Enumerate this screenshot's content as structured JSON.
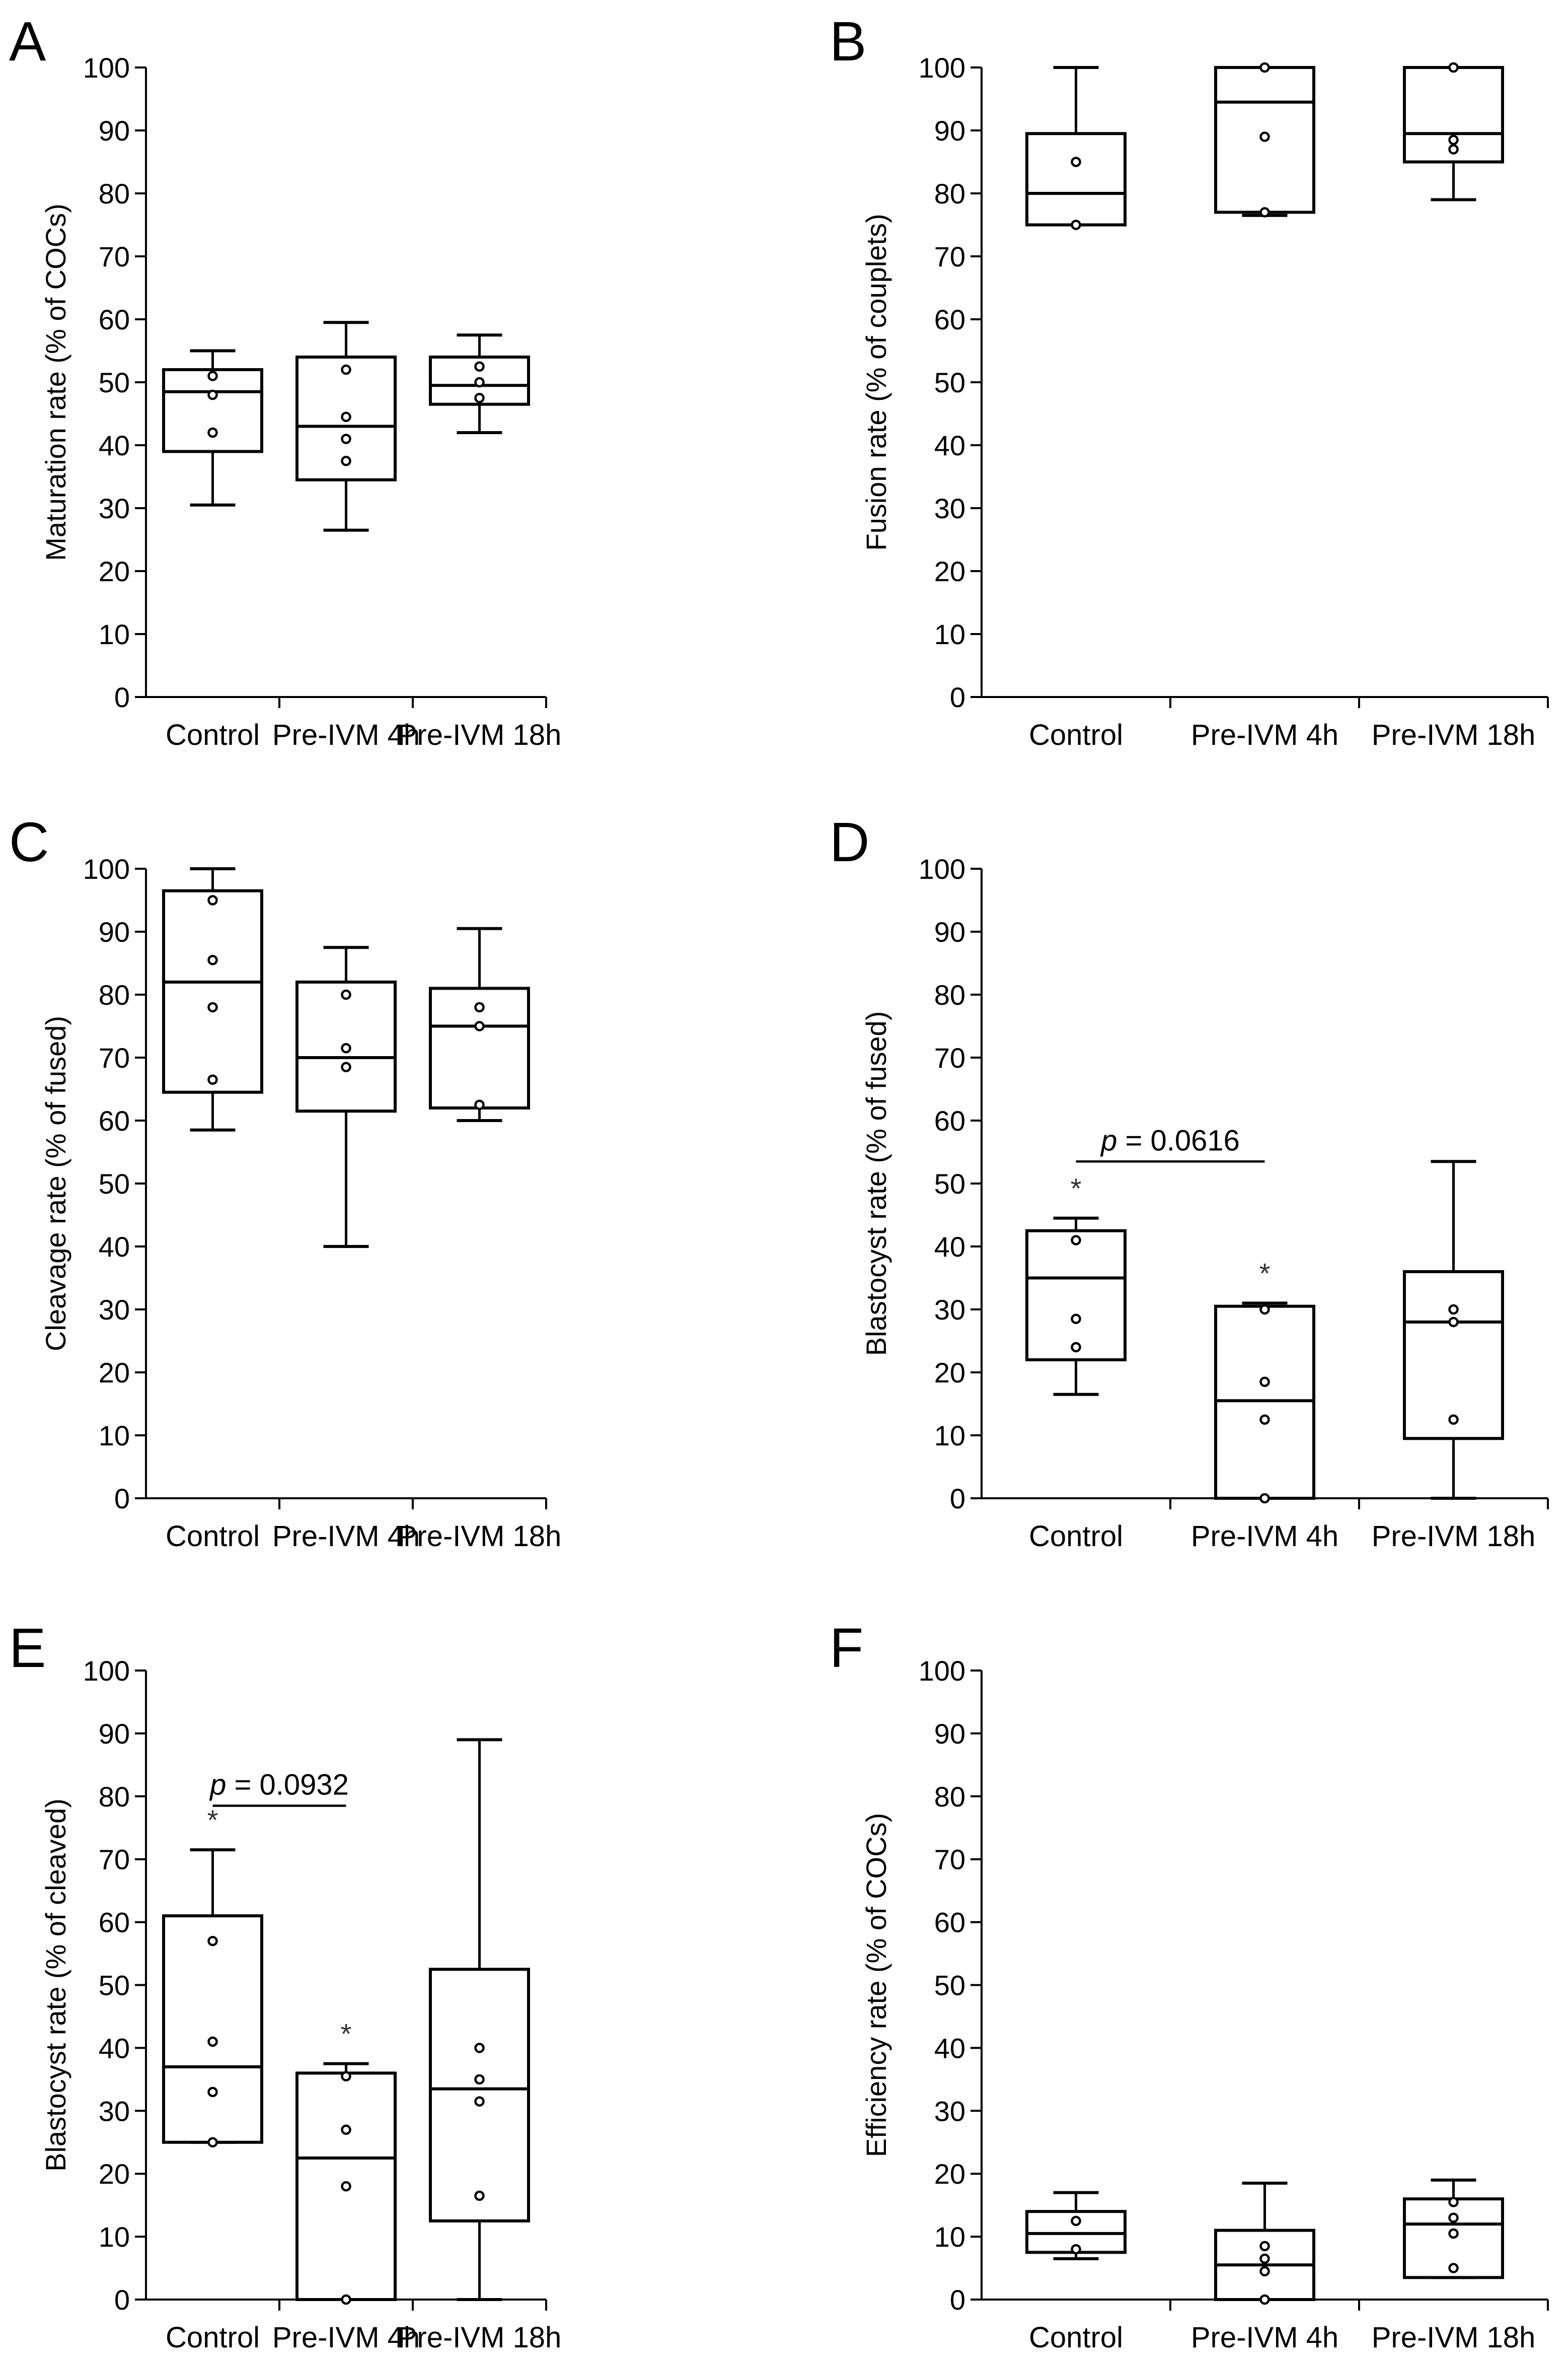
{
  "chart_data": [
    {
      "panel": "A",
      "type": "box",
      "ylabel": "Maturation rate (% of COCs)",
      "ylim": [
        0,
        100
      ],
      "yticks": [
        0,
        10,
        20,
        30,
        40,
        50,
        60,
        70,
        80,
        90,
        100
      ],
      "categories": [
        "Control",
        "Pre-IVM 4h",
        "Pre-IVM 18h"
      ],
      "boxes": [
        {
          "whisker_low": 30.5,
          "q1": 39,
          "median": 48.5,
          "q3": 52,
          "whisker_high": 55,
          "points": [
            42,
            48,
            51
          ]
        },
        {
          "whisker_low": 26.5,
          "q1": 34.5,
          "median": 43,
          "q3": 54,
          "whisker_high": 59.5,
          "points": [
            37.5,
            41,
            44.5,
            52
          ]
        },
        {
          "whisker_low": 42,
          "q1": 46.5,
          "median": 49.5,
          "q3": 54,
          "whisker_high": 57.5,
          "points": [
            47.5,
            50,
            52.5
          ]
        }
      ],
      "annotation": null
    },
    {
      "panel": "B",
      "type": "box",
      "ylabel": "Fusion rate (% of couplets)",
      "ylim": [
        0,
        100
      ],
      "yticks": [
        0,
        10,
        20,
        30,
        40,
        50,
        60,
        70,
        80,
        90,
        100
      ],
      "categories": [
        "Control",
        "Pre-IVM 4h",
        "Pre-IVM 18h"
      ],
      "boxes": [
        {
          "whisker_low": 75,
          "q1": 75,
          "median": 80,
          "q3": 89.5,
          "whisker_high": 100,
          "points": [
            75,
            85
          ]
        },
        {
          "whisker_low": 76.5,
          "q1": 77,
          "median": 94.5,
          "q3": 100,
          "whisker_high": 100,
          "points": [
            77,
            89,
            100
          ]
        },
        {
          "whisker_low": 79,
          "q1": 85,
          "median": 89.5,
          "q3": 100,
          "whisker_high": 100,
          "points": [
            87,
            88.5,
            100
          ]
        }
      ],
      "annotation": null
    },
    {
      "panel": "C",
      "type": "box",
      "ylabel": "Cleavage rate (% of fused)",
      "ylim": [
        0,
        100
      ],
      "yticks": [
        0,
        10,
        20,
        30,
        40,
        50,
        60,
        70,
        80,
        90,
        100
      ],
      "categories": [
        "Control",
        "Pre-IVM 4h",
        "Pre-IVM 18h"
      ],
      "boxes": [
        {
          "whisker_low": 58.5,
          "q1": 64.5,
          "median": 82,
          "q3": 96.5,
          "whisker_high": 100,
          "points": [
            66.5,
            78,
            85.5,
            95
          ]
        },
        {
          "whisker_low": 40,
          "q1": 61.5,
          "median": 70,
          "q3": 82,
          "whisker_high": 87.5,
          "points": [
            68.5,
            71.5,
            80
          ]
        },
        {
          "whisker_low": 60,
          "q1": 62,
          "median": 75,
          "q3": 81,
          "whisker_high": 90.5,
          "points": [
            62.5,
            75,
            78
          ]
        }
      ],
      "annotation": null
    },
    {
      "panel": "D",
      "type": "box",
      "ylabel": "Blastocyst rate (% of fused)",
      "ylim": [
        0,
        100
      ],
      "yticks": [
        0,
        10,
        20,
        30,
        40,
        50,
        60,
        70,
        80,
        90,
        100
      ],
      "categories": [
        "Control",
        "Pre-IVM 4h",
        "Pre-IVM 18h"
      ],
      "boxes": [
        {
          "whisker_low": 16.5,
          "q1": 22,
          "median": 35,
          "q3": 42.5,
          "whisker_high": 44.5,
          "points": [
            24,
            28.5,
            41
          ],
          "star": true
        },
        {
          "whisker_low": 0,
          "q1": 0,
          "median": 15.5,
          "q3": 30.5,
          "whisker_high": 31,
          "points": [
            0,
            12.5,
            18.5,
            30
          ],
          "star": true
        },
        {
          "whisker_low": 0,
          "q1": 9.5,
          "median": 28,
          "q3": 36,
          "whisker_high": 53.5,
          "points": [
            12.5,
            28,
            30
          ],
          "star": false
        }
      ],
      "annotation": {
        "prefix": "p",
        "text": " = 0.0616",
        "from": 0,
        "to": 1,
        "y": 53.5
      }
    },
    {
      "panel": "E",
      "type": "box",
      "ylabel": "Blastocyst rate (% of cleaved)",
      "ylim": [
        0,
        100
      ],
      "yticks": [
        0,
        10,
        20,
        30,
        40,
        50,
        60,
        70,
        80,
        90,
        100
      ],
      "categories": [
        "Control",
        "Pre-IVM 4h",
        "Pre-IVM 18h"
      ],
      "boxes": [
        {
          "whisker_low": 25,
          "q1": 25,
          "median": 37,
          "q3": 61,
          "whisker_high": 71.5,
          "points": [
            25,
            33,
            41,
            57
          ],
          "star": true
        },
        {
          "whisker_low": 0,
          "q1": 0,
          "median": 22.5,
          "q3": 36,
          "whisker_high": 37.5,
          "points": [
            0,
            18,
            27,
            35.5
          ],
          "star": true
        },
        {
          "whisker_low": 0,
          "q1": 12.5,
          "median": 33.5,
          "q3": 52.5,
          "whisker_high": 89,
          "points": [
            16.5,
            31.5,
            35,
            40
          ],
          "star": false
        }
      ],
      "annotation": {
        "prefix": "p",
        "text": " = 0.0932",
        "from": 0,
        "to": 1,
        "y": 78.5
      }
    },
    {
      "panel": "F",
      "type": "box",
      "ylabel": "Efficiency rate (% of COCs)",
      "ylim": [
        0,
        100
      ],
      "yticks": [
        0,
        10,
        20,
        30,
        40,
        50,
        60,
        70,
        80,
        90,
        100
      ],
      "categories": [
        "Control",
        "Pre-IVM 4h",
        "Pre-IVM 18h"
      ],
      "boxes": [
        {
          "whisker_low": 6.5,
          "q1": 7.5,
          "median": 10.5,
          "q3": 14,
          "whisker_high": 17,
          "points": [
            8,
            12.5
          ]
        },
        {
          "whisker_low": 0,
          "q1": 0,
          "median": 5.5,
          "q3": 11,
          "whisker_high": 18.5,
          "points": [
            0,
            4.5,
            6.5,
            8.5
          ]
        },
        {
          "whisker_low": 3.5,
          "q1": 3.5,
          "median": 12,
          "q3": 16,
          "whisker_high": 19,
          "points": [
            5,
            10.5,
            13,
            15.5
          ]
        }
      ],
      "annotation": null
    }
  ]
}
